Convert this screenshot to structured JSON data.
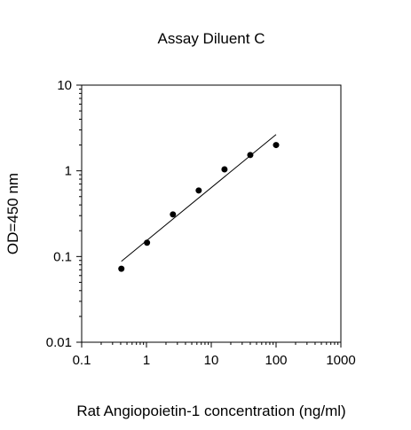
{
  "chart_data": {
    "type": "scatter",
    "title": "Assay Diluent C",
    "xlabel": "Rat Angiopoietin-1 concentration (ng/ml)",
    "ylabel": "OD=450 nm",
    "x_scale": "log",
    "y_scale": "log",
    "xlim": [
      0.1,
      1000
    ],
    "ylim": [
      0.01,
      10
    ],
    "x_ticks": [
      "0.1",
      "1",
      "10",
      "100",
      "1000"
    ],
    "y_ticks": [
      "0.01",
      "0.1",
      "1",
      "10"
    ],
    "grid": false,
    "legend": "none",
    "colors": {
      "points": "#000000",
      "fit_line": "#000000",
      "axes": "#000000"
    },
    "series": [
      {
        "x": [
          0.41,
          1.02,
          2.56,
          6.4,
          16,
          40,
          100
        ],
        "y": [
          0.072,
          0.145,
          0.31,
          0.59,
          1.04,
          1.53,
          2.0
        ]
      }
    ],
    "fit_line": {
      "x": [
        0.41,
        100
      ],
      "y": [
        0.088,
        2.65
      ]
    }
  }
}
